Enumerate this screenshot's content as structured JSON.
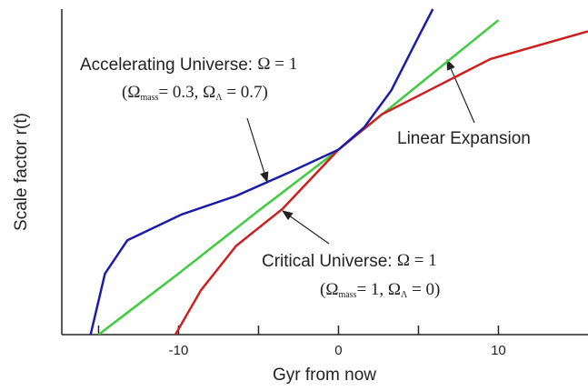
{
  "chart_data": {
    "type": "line",
    "x_label": "Gyr from now",
    "y_label": "Scale factor r(t)",
    "xlim": [
      -17.3,
      15.6
    ],
    "ylim": [
      0,
      1.76
    ],
    "xticks": [
      -10,
      0,
      10
    ],
    "xminor_ticks": [
      -15,
      -5,
      5
    ],
    "series": [
      {
        "name": "Linear Expansion",
        "color": "#3fcc3f",
        "x": [
          -15,
          -10,
          -5,
          0,
          5,
          10
        ],
        "values": [
          0,
          0.33,
          0.67,
          1.0,
          1.35,
          1.7
        ]
      },
      {
        "name": "Critical Universe",
        "color": "#cc2020",
        "x": [
          -10.2,
          -8.6,
          -6.4,
          -3.5,
          0,
          2.7,
          6.1,
          9.5,
          15.6
        ],
        "values": [
          0,
          0.24,
          0.48,
          0.68,
          1.0,
          1.19,
          1.34,
          1.49,
          1.64
        ]
      },
      {
        "name": "Accelerating Universe",
        "color": "#1c1ca8",
        "x": [
          -15.5,
          -14.6,
          -13.2,
          -9.8,
          -6.4,
          -3.0,
          0,
          1.6,
          3.3,
          5.0,
          5.9
        ],
        "values": [
          0,
          0.33,
          0.51,
          0.65,
          0.75,
          0.88,
          1.0,
          1.12,
          1.32,
          1.61,
          1.76
        ]
      }
    ],
    "annotations": [
      {
        "line1": [
          {
            "text": "Accelerating Universe: "
          },
          {
            "text": "Ω = 1",
            "serif": true
          }
        ],
        "line2": [
          {
            "text": "(Ω"
          },
          {
            "text": "mass",
            "sub": true
          },
          {
            "text": "= 0.3,   Ω"
          },
          {
            "text": "Λ",
            "sub": true
          },
          {
            "text": " = 0.7)"
          }
        ]
      },
      {
        "line1": [
          {
            "text": "Linear Expansion"
          }
        ]
      },
      {
        "line1": [
          {
            "text": "Critical Universe:  "
          },
          {
            "text": "Ω = 1",
            "serif": true
          }
        ],
        "line2": [
          {
            "text": "(Ω"
          },
          {
            "text": "mass",
            "sub": true
          },
          {
            "text": "= 1,   Ω"
          },
          {
            "text": "Λ",
            "sub": true
          },
          {
            "text": " = 0)"
          }
        ]
      }
    ]
  }
}
